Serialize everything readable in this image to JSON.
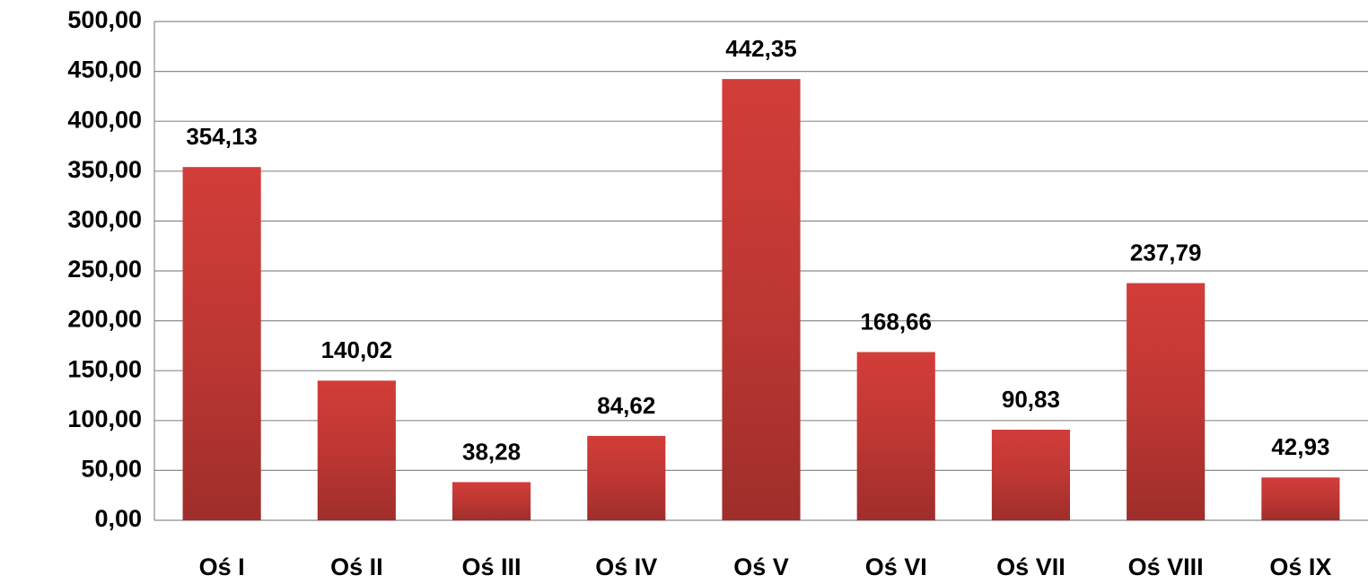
{
  "chart_data": {
    "type": "bar",
    "categories": [
      "Oś I",
      "Oś II",
      "Oś III",
      "Oś IV",
      "Oś V",
      "Oś VI",
      "Oś VII",
      "Oś VIII",
      "Oś IX"
    ],
    "values": [
      354.13,
      140.02,
      38.28,
      84.62,
      442.35,
      168.66,
      90.83,
      237.79,
      42.93
    ],
    "value_labels": [
      "354,13",
      "140,02",
      "38,28",
      "84,62",
      "442,35",
      "168,66",
      "90,83",
      "237,79",
      "42,93"
    ],
    "color": "#cc3b37",
    "ylim": [
      0,
      500
    ],
    "yticks": [
      {
        "value": 0,
        "label": "0,00"
      },
      {
        "value": 50,
        "label": "50,00"
      },
      {
        "value": 100,
        "label": "100,00"
      },
      {
        "value": 150,
        "label": "150,00"
      },
      {
        "value": 200,
        "label": "200,00"
      },
      {
        "value": 250,
        "label": "250,00"
      },
      {
        "value": 300,
        "label": "300,00"
      },
      {
        "value": 350,
        "label": "350,00"
      },
      {
        "value": 400,
        "label": "400,00"
      },
      {
        "value": 450,
        "label": "450,00"
      },
      {
        "value": 500,
        "label": "500,00"
      }
    ],
    "grid": true
  }
}
